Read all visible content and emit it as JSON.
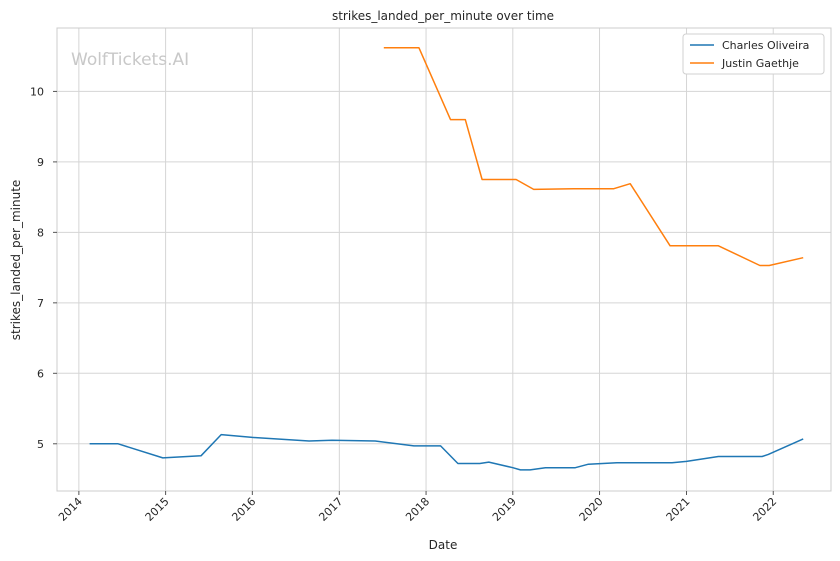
{
  "watermark": "WolfTickets.AI",
  "chart_data": {
    "type": "line",
    "title": "strikes_landed_per_minute over time",
    "xlabel": "Date",
    "ylabel": "strikes_landed_per_minute",
    "x_ticks": [
      "2014",
      "2015",
      "2016",
      "2017",
      "2018",
      "2019",
      "2020",
      "2021",
      "2022"
    ],
    "y_ticks": [
      5,
      6,
      7,
      8,
      9,
      10
    ],
    "xlim": [
      "2013-10-01",
      "2022-09-01"
    ],
    "ylim": [
      4.33,
      10.9
    ],
    "grid": true,
    "legend": "top-right",
    "series": [
      {
        "name": "Charles Oliveira",
        "color": "#1f77b4",
        "points": [
          [
            "2014-02-15",
            5.0
          ],
          [
            "2014-06-15",
            5.0
          ],
          [
            "2014-12-20",
            4.8
          ],
          [
            "2015-05-30",
            4.83
          ],
          [
            "2015-08-23",
            5.13
          ],
          [
            "2016-01-01",
            5.09
          ],
          [
            "2016-08-27",
            5.04
          ],
          [
            "2016-12-01",
            5.05
          ],
          [
            "2017-06-01",
            5.04
          ],
          [
            "2017-11-11",
            4.97
          ],
          [
            "2018-03-03",
            4.97
          ],
          [
            "2018-05-15",
            4.72
          ],
          [
            "2018-08-15",
            4.72
          ],
          [
            "2018-09-22",
            4.74
          ],
          [
            "2019-01-01",
            4.66
          ],
          [
            "2019-02-02",
            4.63
          ],
          [
            "2019-03-15",
            4.63
          ],
          [
            "2019-05-18",
            4.66
          ],
          [
            "2019-09-21",
            4.66
          ],
          [
            "2019-11-15",
            4.71
          ],
          [
            "2020-03-14",
            4.73
          ],
          [
            "2020-11-01",
            4.73
          ],
          [
            "2021-01-01",
            4.75
          ],
          [
            "2021-05-15",
            4.82
          ],
          [
            "2021-11-15",
            4.82
          ],
          [
            "2021-12-11",
            4.85
          ],
          [
            "2022-05-07",
            5.07
          ]
        ]
      },
      {
        "name": "Justin Gaethje",
        "color": "#ff7f0e",
        "points": [
          [
            "2017-07-07",
            10.62
          ],
          [
            "2017-12-02",
            10.62
          ],
          [
            "2018-04-14",
            9.6
          ],
          [
            "2018-06-15",
            9.6
          ],
          [
            "2018-08-25",
            8.75
          ],
          [
            "2019-01-15",
            8.75
          ],
          [
            "2019-03-30",
            8.61
          ],
          [
            "2019-09-14",
            8.62
          ],
          [
            "2020-03-01",
            8.62
          ],
          [
            "2020-05-09",
            8.69
          ],
          [
            "2020-10-24",
            7.81
          ],
          [
            "2021-05-15",
            7.81
          ],
          [
            "2021-11-06",
            7.53
          ],
          [
            "2021-12-15",
            7.53
          ],
          [
            "2022-05-07",
            7.64
          ]
        ]
      }
    ]
  }
}
